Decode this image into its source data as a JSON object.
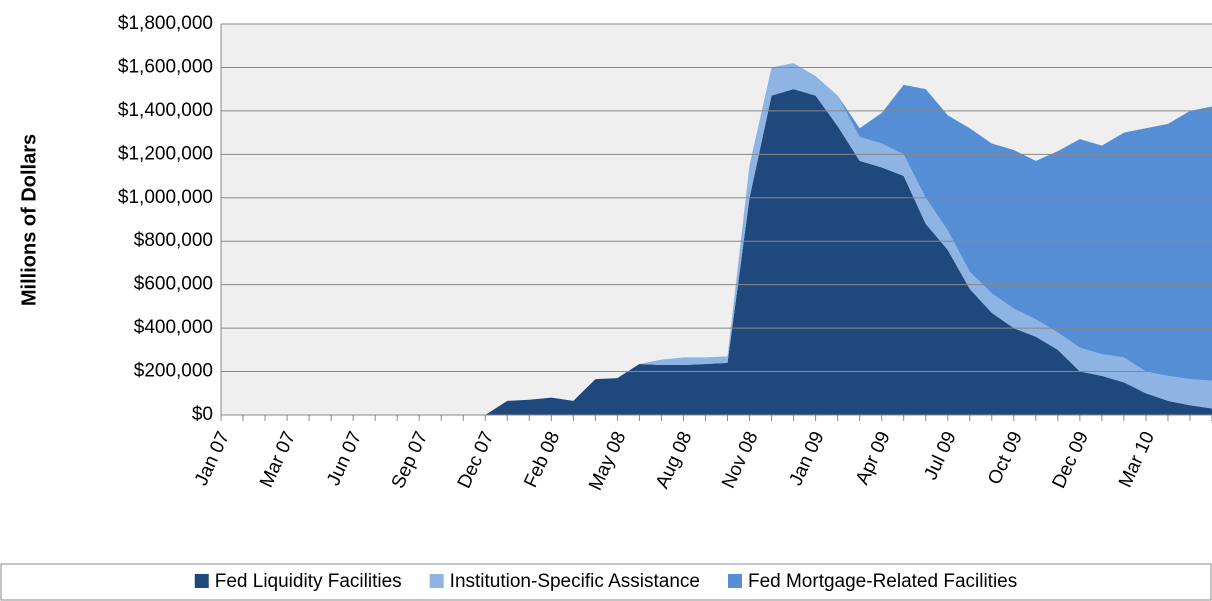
{
  "chart_data": {
    "type": "stacked_area",
    "y_label": "Millions of Dollars",
    "categories": [
      "Jan 07",
      null,
      null,
      "Mar 07",
      null,
      null,
      "Jun 07",
      null,
      null,
      "Sep 07",
      null,
      null,
      "Dec 07",
      null,
      null,
      "Feb 08",
      null,
      null,
      "May 08",
      null,
      null,
      "Aug 08",
      null,
      null,
      "Nov 08",
      null,
      null,
      "Jan 09",
      null,
      null,
      "Apr 09",
      null,
      null,
      "Jul 09",
      null,
      null,
      "Oct 09",
      null,
      null,
      "Dec 09",
      null,
      null,
      "Mar 10",
      null,
      null,
      null
    ],
    "series": [
      {
        "name": "Fed Liquidity Facilities",
        "color": "#1f497d",
        "values": [
          0,
          0,
          0,
          0,
          0,
          0,
          0,
          0,
          0,
          0,
          0,
          0,
          0,
          65000,
          70000,
          80000,
          65000,
          165000,
          170000,
          235000,
          230000,
          230000,
          235000,
          240000,
          1000000,
          1470000,
          1500000,
          1470000,
          1330000,
          1170000,
          1140000,
          1100000,
          880000,
          760000,
          580000,
          470000,
          400000,
          360000,
          300000,
          200000,
          180000,
          150000,
          100000,
          65000,
          45000,
          30000
        ]
      },
      {
        "name": "Institution-Specific Assistance",
        "color": "#8eb4e3",
        "values": [
          0,
          0,
          0,
          0,
          0,
          0,
          0,
          0,
          0,
          0,
          0,
          0,
          0,
          0,
          0,
          0,
          0,
          0,
          0,
          0,
          25000,
          35000,
          30000,
          30000,
          150000,
          130000,
          120000,
          90000,
          140000,
          110000,
          110000,
          100000,
          120000,
          90000,
          80000,
          90000,
          90000,
          80000,
          80000,
          110000,
          100000,
          115000,
          100000,
          115000,
          120000,
          128000
        ]
      },
      {
        "name": "Fed Mortgage-Related Facilities",
        "color": "#558ed5",
        "values": [
          0,
          0,
          0,
          0,
          0,
          0,
          0,
          0,
          0,
          0,
          0,
          0,
          0,
          0,
          0,
          0,
          0,
          0,
          0,
          0,
          0,
          0,
          0,
          0,
          0,
          0,
          0,
          0,
          0,
          40000,
          140000,
          320000,
          500000,
          530000,
          660000,
          690000,
          730000,
          730000,
          835000,
          960000,
          960000,
          1035000,
          1120000,
          1160000,
          1235000,
          1262000
        ]
      }
    ],
    "ylim": [
      0,
      1800000
    ],
    "yticks": [
      {
        "value": 0,
        "label": "$0"
      },
      {
        "value": 200000,
        "label": "$200,000"
      },
      {
        "value": 400000,
        "label": "$400,000"
      },
      {
        "value": 600000,
        "label": "$600,000"
      },
      {
        "value": 800000,
        "label": "$800,000"
      },
      {
        "value": 1000000,
        "label": "$1,000,000"
      },
      {
        "value": 1200000,
        "label": "$1,200,000"
      },
      {
        "value": 1400000,
        "label": "$1,400,000"
      },
      {
        "value": 1600000,
        "label": "$1,600,000"
      },
      {
        "value": 1800000,
        "label": "$1,800,000"
      }
    ],
    "grid": true,
    "legend": "bottom"
  }
}
